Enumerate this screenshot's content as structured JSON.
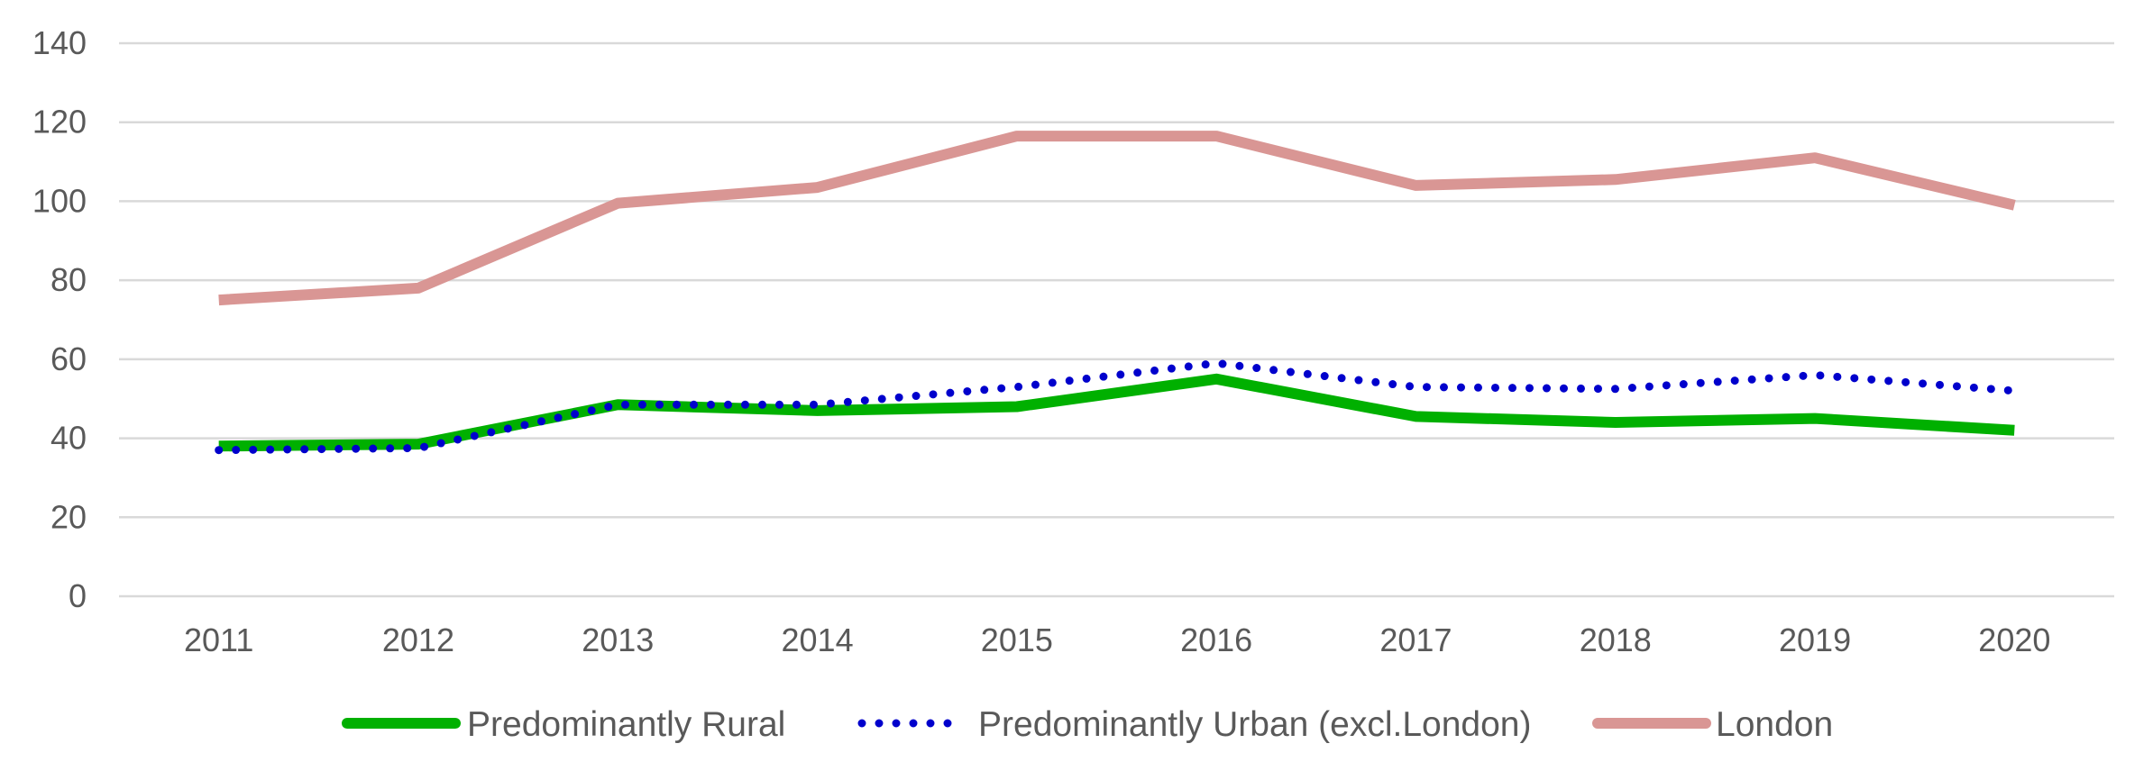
{
  "chart_data": {
    "type": "line",
    "title": "",
    "xlabel": "",
    "ylabel": "",
    "x": [
      "2011",
      "2012",
      "2013",
      "2014",
      "2015",
      "2016",
      "2017",
      "2018",
      "2019",
      "2020"
    ],
    "yticks": [
      "0",
      "20",
      "40",
      "60",
      "80",
      "100",
      "120",
      "140"
    ],
    "ylim": [
      0,
      140
    ],
    "grid": "horizontal",
    "legend_position": "bottom",
    "series": [
      {
        "name": "Predominantly Rural",
        "values": [
          38,
          38.5,
          48.5,
          47,
          48,
          55,
          45.5,
          44,
          45,
          42
        ],
        "color": "#00B000",
        "style": "solid"
      },
      {
        "name": "Predominantly Urban (excl.London)",
        "values": [
          37,
          37.5,
          48.5,
          48.5,
          53,
          59,
          53,
          52.5,
          56,
          52
        ],
        "color": "#0000CC",
        "style": "dotted"
      },
      {
        "name": "London",
        "values": [
          75,
          78,
          99.5,
          103.5,
          116.5,
          116.5,
          104,
          105.5,
          111,
          99
        ],
        "color": "#D99694",
        "style": "solid"
      }
    ]
  }
}
